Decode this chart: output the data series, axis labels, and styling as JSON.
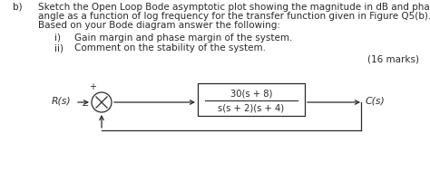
{
  "title_b": "b)",
  "main_text_line1": "Sketch the Open Loop Bode asymptotic plot showing the magnitude in dB and phase",
  "main_text_line2": "angle as a function of log frequency for the transfer function given in Figure Q5(b).",
  "main_text_line3": "Based on your Bode diagram answer the following:",
  "item_i_label": "i)",
  "item_i_text": "Gain margin and phase margin of the system.",
  "item_ii_label": "ii)",
  "item_ii_text": "Comment on the stability of the system.",
  "marks": "(16 marks)",
  "tf_numerator": "30(s + 8)",
  "tf_denominator": "s(s + 2)(s + 4)",
  "input_label": "R(s)",
  "output_label": "C(s)",
  "bg_color": "#ffffff",
  "text_color": "#2a2a2a",
  "font_size_body": 7.5,
  "font_size_tf": 7.2,
  "font_size_label": 7.8
}
